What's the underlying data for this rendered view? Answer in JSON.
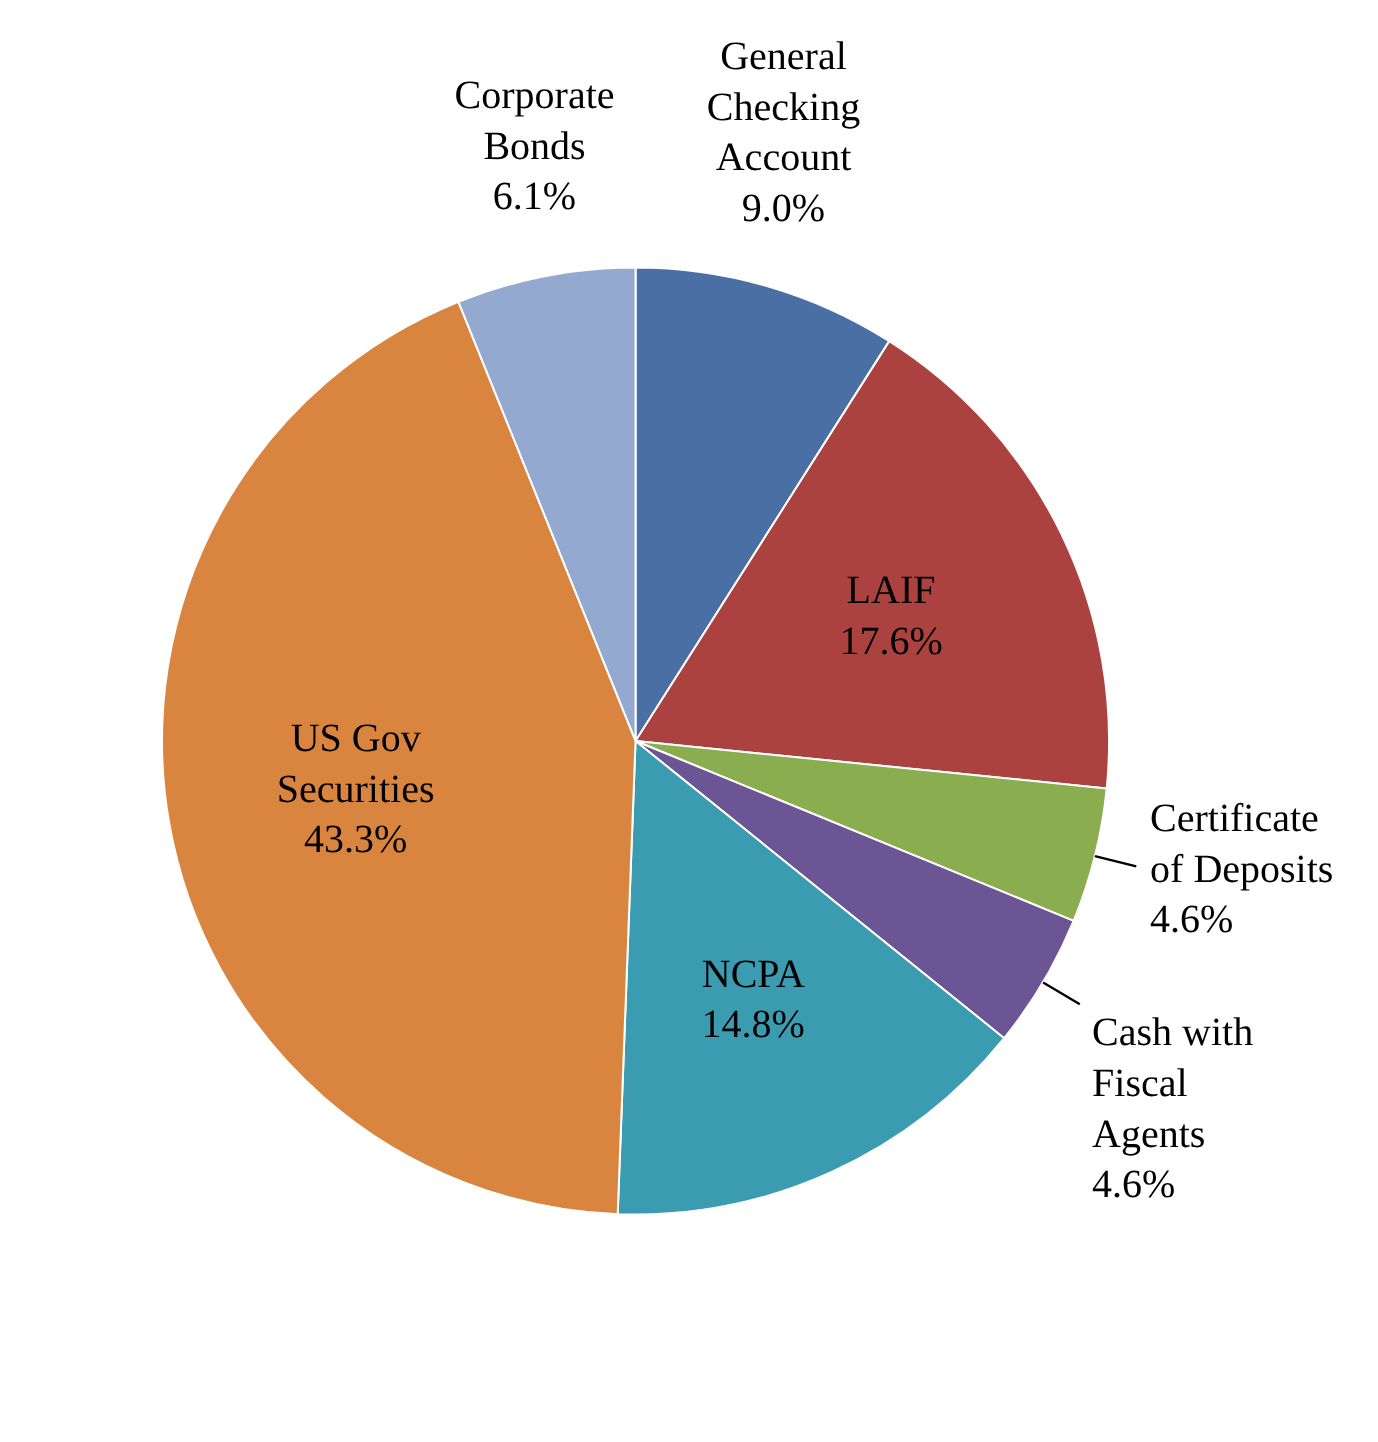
{
  "chart_data": {
    "type": "pie",
    "categories": [
      "General Checking Account",
      "LAIF",
      "Certificate of Deposits",
      "Cash with Fiscal Agents",
      "NCPA",
      "US Gov Securities",
      "Corporate Bonds"
    ],
    "values": [
      9.0,
      17.6,
      4.6,
      4.6,
      14.8,
      43.3,
      6.1
    ],
    "colors": [
      "#4a6fa5",
      "#ab4240",
      "#8aad4f",
      "#6c5594",
      "#3b9bb0",
      "#d9853f",
      "#93a9d0"
    ],
    "value_labels": [
      "9.0%",
      "17.6%",
      "4.6%",
      "4.6%",
      "14.8%",
      "43.3%",
      "6.1%"
    ]
  }
}
